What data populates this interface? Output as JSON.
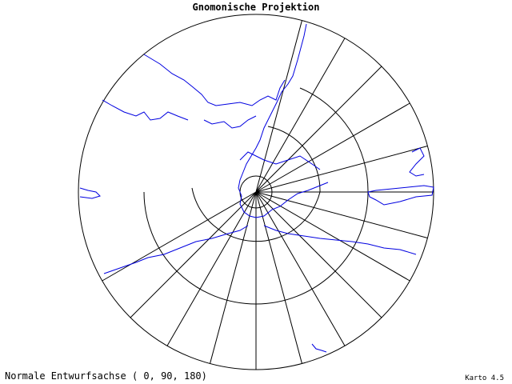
{
  "header": {
    "title": "Gnomonische Projektion"
  },
  "footer": {
    "projection": "Normale Entwurfsachse ( 0, 90, 180)",
    "version": "Karto 4.5"
  }
}
